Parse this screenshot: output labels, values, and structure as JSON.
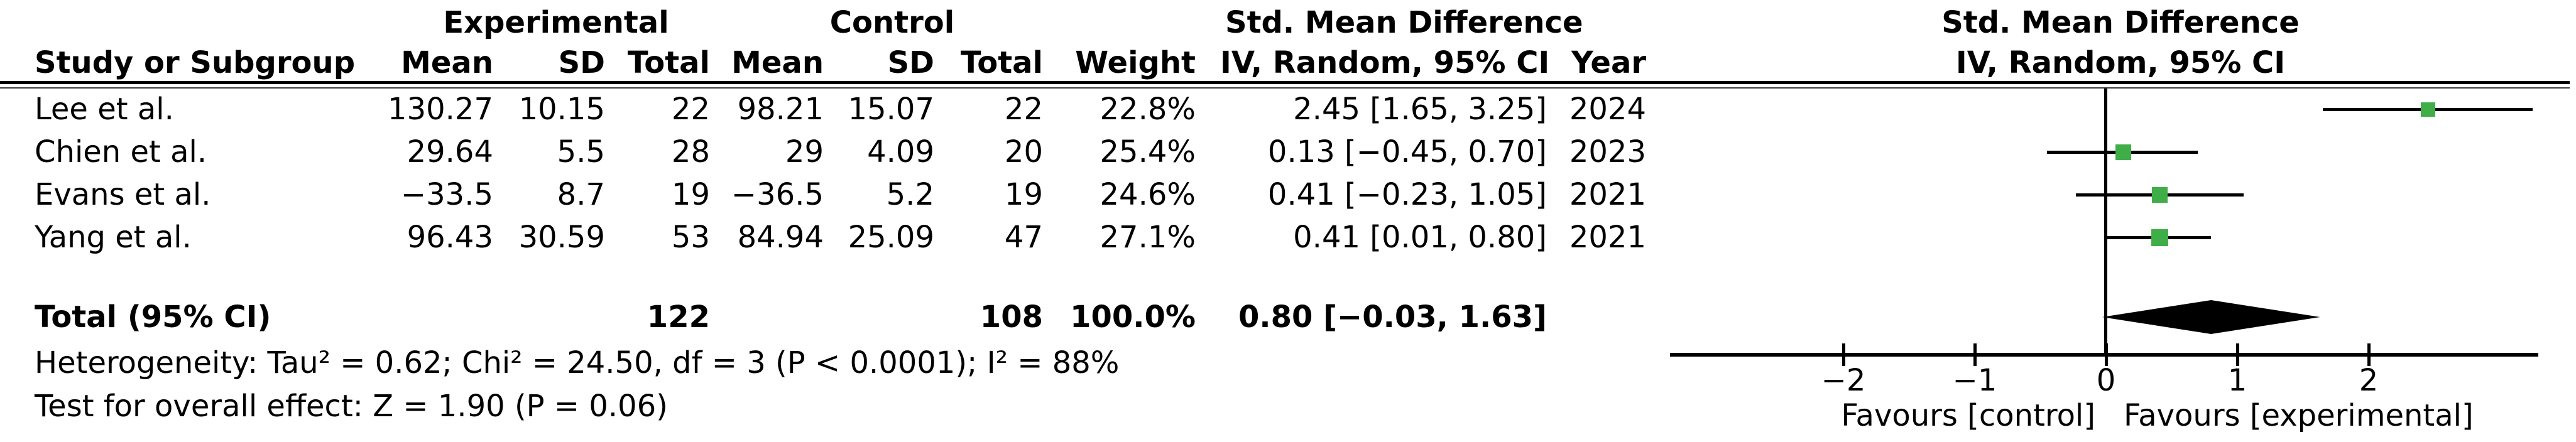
{
  "table": {
    "group_headers": {
      "experimental": "Experimental",
      "control": "Control",
      "smd": "Std. Mean Difference"
    },
    "col_headers": {
      "study": "Study or Subgroup",
      "mean": "Mean",
      "sd": "SD",
      "total": "Total",
      "weight": "Weight",
      "ci": "IV, Random, 95% CI",
      "year": "Year"
    },
    "rows": [
      {
        "study": "Lee et al.",
        "exp_mean": "130.27",
        "exp_sd": "10.15",
        "exp_total": "22",
        "ctl_mean": "98.21",
        "ctl_sd": "15.07",
        "ctl_total": "22",
        "weight": "22.8%",
        "ci": "2.45 [1.65, 3.25]",
        "year": "2024"
      },
      {
        "study": "Chien et al.",
        "exp_mean": "29.64",
        "exp_sd": "5.5",
        "exp_total": "28",
        "ctl_mean": "29",
        "ctl_sd": "4.09",
        "ctl_total": "20",
        "weight": "25.4%",
        "ci": "0.13 [−0.45, 0.70]",
        "year": "2023"
      },
      {
        "study": "Evans et al.",
        "exp_mean": "−33.5",
        "exp_sd": "8.7",
        "exp_total": "19",
        "ctl_mean": "−36.5",
        "ctl_sd": "5.2",
        "ctl_total": "19",
        "weight": "24.6%",
        "ci": "0.41 [−0.23, 1.05]",
        "year": "2021"
      },
      {
        "study": "Yang et al.",
        "exp_mean": "96.43",
        "exp_sd": "30.59",
        "exp_total": "53",
        "ctl_mean": "84.94",
        "ctl_sd": "25.09",
        "ctl_total": "47",
        "weight": "27.1%",
        "ci": "0.41 [0.01, 0.80]",
        "year": "2021"
      }
    ],
    "total_row": {
      "label": "Total (95% CI)",
      "exp_total": "122",
      "ctl_total": "108",
      "weight": "100.0%",
      "ci": "0.80 [−0.03, 1.63]"
    },
    "footnotes": {
      "heterogeneity": "Heterogeneity: Tau² = 0.62; Chi² = 24.50, df = 3 (P < 0.0001); I² = 88%",
      "overall_effect": "Test for overall effect: Z = 1.90 (P = 0.06)"
    }
  },
  "plot": {
    "header_line1": "Std. Mean Difference",
    "header_line2": "IV, Random, 95% CI",
    "marker_color": "#3FAE49",
    "diamond_color": "#000000",
    "line_color": "#000000"
  },
  "chart_data": {
    "type": "scatter",
    "subtype": "forest-plot",
    "title": "Std. Mean Difference — IV, Random, 95% CI",
    "x_ticks": [
      -2,
      -1,
      0,
      1,
      2
    ],
    "xlim": [
      -3.3,
      3.3
    ],
    "zero_line": 0,
    "legend_position": "none",
    "grid": false,
    "studies": [
      {
        "name": "Lee et al.",
        "smd": 2.45,
        "ci_low": 1.65,
        "ci_high": 3.25,
        "weight_pct": 22.8,
        "year": 2024
      },
      {
        "name": "Chien et al.",
        "smd": 0.13,
        "ci_low": -0.45,
        "ci_high": 0.7,
        "weight_pct": 25.4,
        "year": 2023
      },
      {
        "name": "Evans et al.",
        "smd": 0.41,
        "ci_low": -0.23,
        "ci_high": 1.05,
        "weight_pct": 24.6,
        "year": 2021
      },
      {
        "name": "Yang et al.",
        "smd": 0.41,
        "ci_low": 0.01,
        "ci_high": 0.8,
        "weight_pct": 27.1,
        "year": 2021
      }
    ],
    "total": {
      "label": "Total (95% CI)",
      "smd": 0.8,
      "ci_low": -0.03,
      "ci_high": 1.63,
      "weight_pct": 100.0
    },
    "xlabel_left": "Favours [control]",
    "xlabel_right": "Favours [experimental]"
  }
}
